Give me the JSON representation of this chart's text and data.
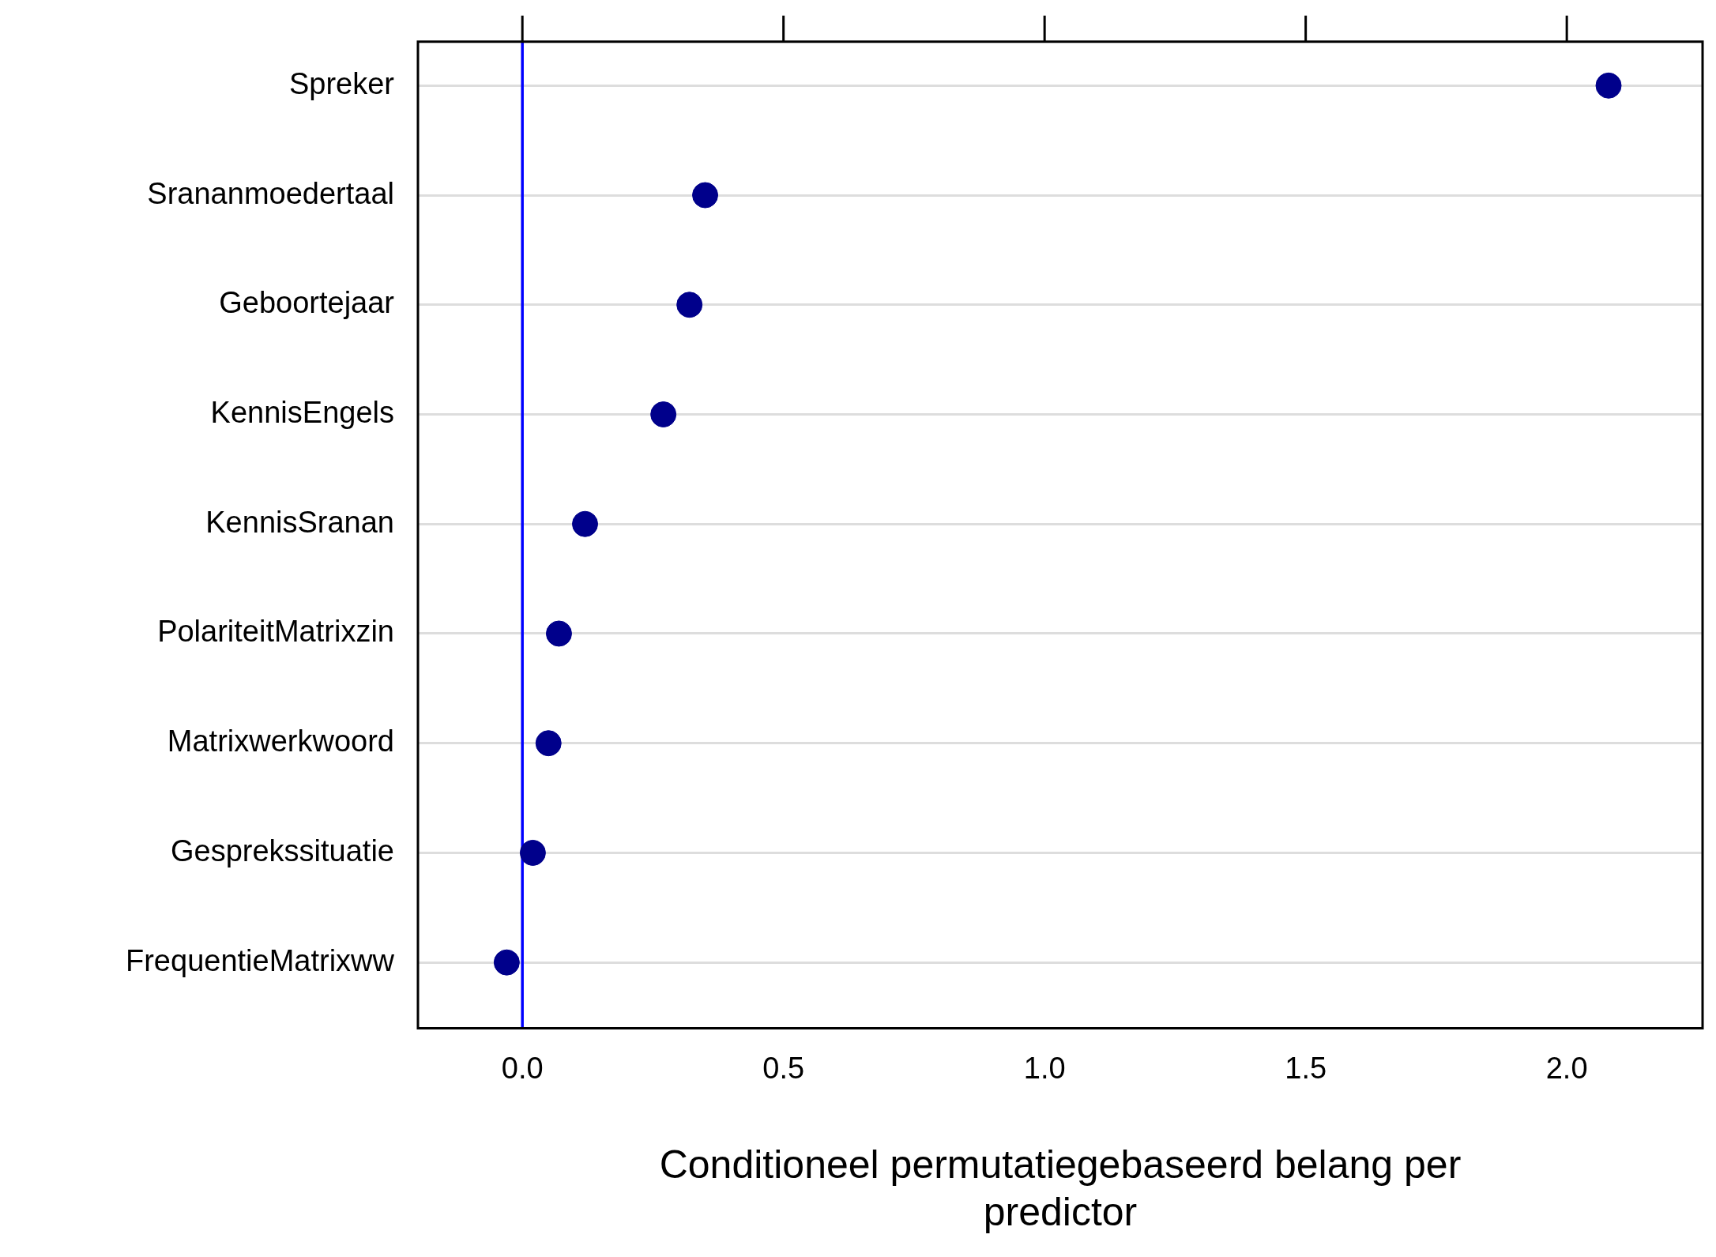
{
  "chart_data": {
    "type": "scatter",
    "orientation": "horizontal",
    "categories": [
      "Spreker",
      "Srananmoedertaal",
      "Geboortejaar",
      "KennisEngels",
      "KennisSranan",
      "PolariteitMatrixzin",
      "Matrixwerkwoord",
      "Gesprekssituatie",
      "FrequentieMatrixww"
    ],
    "values": [
      2.08,
      0.35,
      0.32,
      0.27,
      0.12,
      0.07,
      0.05,
      0.02,
      -0.03
    ],
    "color": "#00008b",
    "marker": "circle",
    "xlabel": "Conditioneel permutatiegebaseerd belang per predictor",
    "xlim": [
      -0.2,
      2.26
    ],
    "xticks": [
      {
        "value": 0,
        "label": "0.0"
      },
      0.5,
      {
        "value": 1,
        "label": "1.0"
      },
      1.5,
      {
        "value": 2,
        "label": "2.0"
      }
    ],
    "grid": "y",
    "ref_lines": [
      {
        "axis": "x",
        "value": 0,
        "color": "#0000ff"
      }
    ]
  }
}
